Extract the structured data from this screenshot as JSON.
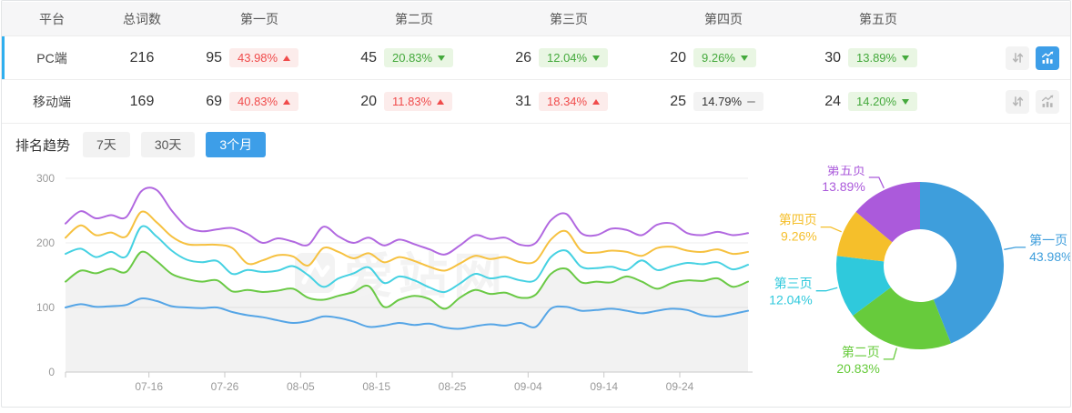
{
  "header": {
    "columns": [
      "平台",
      "总词数",
      "第一页",
      "第二页",
      "第三页",
      "第四页",
      "第五页"
    ]
  },
  "table": {
    "rows": [
      {
        "platform": "PC端",
        "total": "216",
        "selected": true,
        "pages": [
          {
            "count": "95",
            "pct": "43.98%",
            "dir": "up",
            "tone": "red"
          },
          {
            "count": "45",
            "pct": "20.83%",
            "dir": "down",
            "tone": "green"
          },
          {
            "count": "26",
            "pct": "12.04%",
            "dir": "down",
            "tone": "green"
          },
          {
            "count": "20",
            "pct": "9.26%",
            "dir": "down",
            "tone": "green"
          },
          {
            "count": "30",
            "pct": "13.89%",
            "dir": "down",
            "tone": "green"
          }
        ],
        "sort_button_active": false,
        "trend_button_active": true
      },
      {
        "platform": "移动端",
        "total": "169",
        "selected": false,
        "pages": [
          {
            "count": "69",
            "pct": "40.83%",
            "dir": "up",
            "tone": "red"
          },
          {
            "count": "20",
            "pct": "11.83%",
            "dir": "up",
            "tone": "red"
          },
          {
            "count": "31",
            "pct": "18.34%",
            "dir": "up",
            "tone": "red"
          },
          {
            "count": "25",
            "pct": "14.79%",
            "dir": "flat",
            "tone": "gray"
          },
          {
            "count": "24",
            "pct": "14.20%",
            "dir": "down",
            "tone": "green"
          }
        ],
        "sort_button_active": false,
        "trend_button_active": false
      }
    ]
  },
  "trend": {
    "label": "排名趋势",
    "tabs": [
      {
        "label": "7天",
        "active": false
      },
      {
        "label": "30天",
        "active": false
      },
      {
        "label": "3个月",
        "active": true
      }
    ]
  },
  "colors": {
    "accent_blue": "#3D9EE8",
    "row_indicator": "#2FAFEF",
    "badge_red_text": "#F04B4B",
    "badge_red_bg": "#FCECEB",
    "badge_green_text": "#44A93C",
    "badge_green_bg": "#E9F6E3",
    "badge_gray_bg": "#F3F3F3",
    "axis_label": "#999999",
    "grid_line": "#EDEDED",
    "axis_line": "#C9C9C9"
  },
  "chart_data": [
    {
      "type": "line",
      "title": "排名趋势 (3个月)",
      "watermark": "爱站网",
      "ylim": [
        0,
        300
      ],
      "yticks": [
        0,
        100,
        200,
        300
      ],
      "grid": true,
      "legend": "none",
      "xticks": [
        {
          "label": "07-16",
          "pos": 5.5
        },
        {
          "label": "07-26",
          "pos": 10.5
        },
        {
          "label": "08-05",
          "pos": 15.5
        },
        {
          "label": "08-15",
          "pos": 20.5
        },
        {
          "label": "08-25",
          "pos": 25.5
        },
        {
          "label": "09-04",
          "pos": 30.5
        },
        {
          "label": "09-14",
          "pos": 35.5
        },
        {
          "label": "09-24",
          "pos": 40.5
        }
      ],
      "x": [
        "07-05",
        "07-07",
        "07-09",
        "07-11",
        "07-13",
        "07-15",
        "07-17",
        "07-19",
        "07-21",
        "07-23",
        "07-25",
        "07-27",
        "07-29",
        "07-31",
        "08-02",
        "08-04",
        "08-06",
        "08-08",
        "08-10",
        "08-12",
        "08-14",
        "08-16",
        "08-18",
        "08-20",
        "08-22",
        "08-24",
        "08-26",
        "08-28",
        "08-30",
        "09-01",
        "09-03",
        "09-05",
        "09-07",
        "09-09",
        "09-11",
        "09-13",
        "09-15",
        "09-17",
        "09-19",
        "09-21",
        "09-23",
        "09-25",
        "09-27",
        "09-29",
        "10-01",
        "10-03"
      ],
      "series": [
        {
          "name": "第一页",
          "color": "#55A5E6",
          "area": false,
          "values": [
            100,
            105,
            101,
            102,
            104,
            114,
            110,
            102,
            100,
            99,
            100,
            93,
            88,
            85,
            80,
            76,
            79,
            86,
            84,
            78,
            70,
            72,
            76,
            73,
            75,
            69,
            67,
            71,
            74,
            72,
            76,
            70,
            98,
            101,
            95,
            96,
            98,
            95,
            91,
            95,
            98,
            96,
            88,
            86,
            90,
            95
          ]
        },
        {
          "name": "第二页",
          "color": "#6AC945",
          "area": true,
          "values": [
            140,
            157,
            153,
            160,
            155,
            186,
            172,
            152,
            144,
            140,
            142,
            125,
            127,
            124,
            126,
            129,
            115,
            112,
            118,
            124,
            133,
            101,
            112,
            118,
            113,
            98,
            115,
            127,
            121,
            123,
            115,
            120,
            152,
            160,
            139,
            140,
            139,
            148,
            140,
            129,
            138,
            142,
            141,
            145,
            132,
            140
          ]
        },
        {
          "name": "第三页",
          "color": "#45D1E2",
          "area": false,
          "values": [
            183,
            191,
            178,
            186,
            179,
            225,
            210,
            188,
            174,
            170,
            172,
            152,
            158,
            155,
            157,
            164,
            150,
            132,
            145,
            153,
            162,
            138,
            148,
            142,
            131,
            124,
            137,
            152,
            145,
            148,
            142,
            143,
            178,
            188,
            163,
            161,
            163,
            158,
            173,
            158,
            164,
            169,
            167,
            170,
            159,
            166
          ]
        },
        {
          "name": "第四页",
          "color": "#F6C140",
          "area": false,
          "values": [
            208,
            227,
            212,
            216,
            210,
            248,
            232,
            210,
            198,
            197,
            197,
            192,
            168,
            173,
            181,
            179,
            165,
            192,
            186,
            176,
            184,
            170,
            178,
            172,
            163,
            157,
            168,
            180,
            175,
            178,
            170,
            172,
            205,
            218,
            188,
            185,
            188,
            186,
            180,
            192,
            194,
            188,
            186,
            190,
            183,
            186
          ]
        },
        {
          "name": "第五页",
          "color": "#B168E0",
          "area": false,
          "values": [
            230,
            249,
            238,
            243,
            240,
            280,
            282,
            250,
            225,
            218,
            221,
            223,
            214,
            200,
            207,
            202,
            197,
            225,
            210,
            200,
            208,
            196,
            205,
            198,
            190,
            182,
            196,
            212,
            206,
            208,
            197,
            200,
            235,
            245,
            215,
            212,
            222,
            220,
            212,
            228,
            230,
            215,
            212,
            217,
            212,
            215
          ]
        }
      ]
    },
    {
      "type": "pie",
      "donut": true,
      "legend": "none",
      "slices": [
        {
          "label": "第一页",
          "value": 43.98,
          "color": "#3E9EDC"
        },
        {
          "label": "第二页",
          "value": 20.83,
          "color": "#67CB3C"
        },
        {
          "label": "第三页",
          "value": 12.04,
          "color": "#2FC9DC"
        },
        {
          "label": "第四页",
          "value": 9.26,
          "color": "#F5BF2B"
        },
        {
          "label": "第五页",
          "value": 13.89,
          "color": "#AB5ADB"
        }
      ]
    }
  ]
}
